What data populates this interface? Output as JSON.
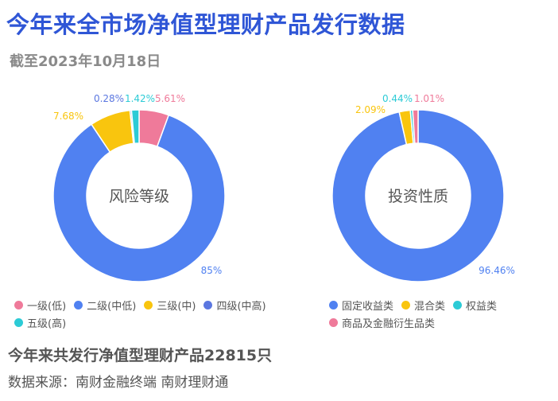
{
  "header": {
    "title": "今年来全市场净值型理财产品发行数据",
    "subtitle": "截至2023年10月18日"
  },
  "chart_data": [
    {
      "type": "pie",
      "center_label": "风险等级",
      "slices": [
        {
          "label": "一级(低)",
          "value": 5.61,
          "display": "5.61%",
          "color": "#ef7a9a"
        },
        {
          "label": "二级(中低)",
          "value": 85,
          "display": "85%",
          "color": "#5081f1"
        },
        {
          "label": "三级(中)",
          "value": 7.68,
          "display": "7.68%",
          "color": "#f9c50e"
        },
        {
          "label": "四级(中高)",
          "value": 0.28,
          "display": "0.28%",
          "color": "#5b77e0"
        },
        {
          "label": "五级(高)",
          "value": 1.42,
          "display": "1.42%",
          "color": "#2ccbd6"
        }
      ],
      "legend_position": "bottom"
    },
    {
      "type": "pie",
      "center_label": "投资性质",
      "slices": [
        {
          "label": "固定收益类",
          "value": 96.46,
          "display": "96.46%",
          "color": "#5081f1"
        },
        {
          "label": "混合类",
          "value": 2.09,
          "display": "2.09%",
          "color": "#f9c50e"
        },
        {
          "label": "权益类",
          "value": 0.44,
          "display": "0.44%",
          "color": "#2ccbd6"
        },
        {
          "label": "商品及金融衍生品类",
          "value": 1.01,
          "display": "1.01%",
          "color": "#ef7a9a"
        }
      ],
      "legend_position": "bottom"
    }
  ],
  "footer": {
    "summary": "今年来共发行净值型理财产品22815只",
    "source": "数据来源：南财金融终端 南财理财通"
  }
}
